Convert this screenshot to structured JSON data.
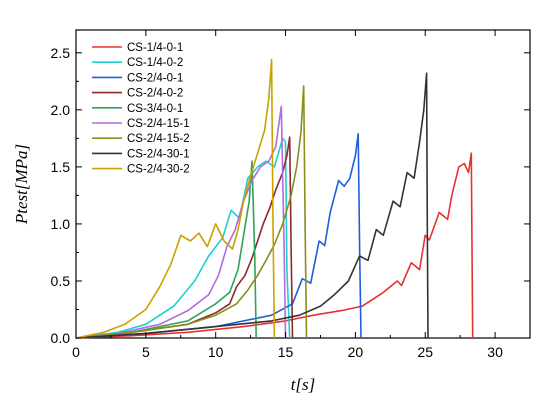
{
  "chart_data": {
    "type": "line",
    "title": "",
    "xlabel": "t[s]",
    "ylabel": "Ptest[MPa]",
    "xlim": [
      0,
      32.5
    ],
    "ylim": [
      0,
      2.7
    ],
    "xticks": [
      0,
      5,
      10,
      15,
      20,
      25,
      30
    ],
    "yticks": [
      0.0,
      0.5,
      1.0,
      1.5,
      2.0,
      2.5
    ],
    "xtick_labels": [
      "0",
      "5",
      "10",
      "15",
      "20",
      "25",
      "30"
    ],
    "ytick_labels": [
      "0.0",
      "0.5",
      "1.0",
      "1.5",
      "2.0",
      "2.5"
    ],
    "grid": false,
    "legend_position": "top-left",
    "series": [
      {
        "name": "CS-1/4-0-1",
        "color": "#e8312f",
        "x": [
          0,
          4,
          8,
          12,
          15,
          17,
          19,
          20.5,
          22,
          23,
          23.3,
          24,
          24.6,
          25,
          25.3,
          26,
          26.6,
          26.9,
          27.4,
          27.8,
          28.1,
          28.3,
          28.35,
          28.4
        ],
        "y": [
          0,
          0.02,
          0.05,
          0.1,
          0.15,
          0.2,
          0.24,
          0.28,
          0.4,
          0.5,
          0.46,
          0.66,
          0.6,
          0.9,
          0.86,
          1.1,
          1.04,
          1.25,
          1.5,
          1.53,
          1.45,
          1.62,
          0.8,
          0
        ]
      },
      {
        "name": "CS-1/4-0-2",
        "color": "#1fcfcf",
        "x": [
          0,
          3,
          5,
          7,
          8.5,
          9.5,
          10.5,
          11.1,
          11.7,
          12.3,
          13,
          13.6,
          14.2,
          14.8,
          15.0,
          15.1,
          15.3
        ],
        "y": [
          0,
          0.05,
          0.12,
          0.28,
          0.5,
          0.72,
          0.88,
          1.12,
          1.05,
          1.4,
          1.5,
          1.55,
          1.5,
          1.75,
          1.72,
          0.6,
          0
        ]
      },
      {
        "name": "CS-2/4-0-1",
        "color": "#1f5fd6",
        "x": [
          0,
          5,
          10,
          14,
          15.5,
          16.2,
          16.8,
          17.4,
          17.8,
          18.2,
          18.8,
          19.2,
          19.6,
          20.0,
          20.2,
          20.3,
          20.4
        ],
        "y": [
          0,
          0.04,
          0.1,
          0.2,
          0.3,
          0.52,
          0.48,
          0.85,
          0.81,
          1.1,
          1.38,
          1.33,
          1.4,
          1.6,
          1.79,
          0.8,
          0
        ]
      },
      {
        "name": "CS-2/4-0-2",
        "color": "#8b2b2b",
        "x": [
          0,
          4,
          8,
          10,
          11,
          11.5,
          12.1,
          12.6,
          13,
          13.4,
          13.9,
          14.3,
          14.8,
          15.1,
          15.3,
          15.4,
          15.5
        ],
        "y": [
          0,
          0.05,
          0.12,
          0.22,
          0.3,
          0.45,
          0.55,
          0.7,
          0.85,
          1.0,
          1.15,
          1.3,
          1.45,
          1.6,
          1.76,
          0.8,
          0
        ]
      },
      {
        "name": "CS-3/4-0-1",
        "color": "#2ea35a",
        "x": [
          0,
          4,
          8,
          10,
          11,
          11.6,
          12.0,
          12.4,
          12.6,
          12.8,
          12.9
        ],
        "y": [
          0,
          0.05,
          0.15,
          0.3,
          0.4,
          0.6,
          0.9,
          1.2,
          1.55,
          0.7,
          0
        ]
      },
      {
        "name": "CS-2/4-15-1",
        "color": "#b26be0",
        "x": [
          0,
          3,
          6,
          8,
          9.5,
          10.2,
          10.8,
          11.4,
          12,
          12.6,
          13.2,
          13.8,
          14.3,
          14.7,
          14.9,
          15.0
        ],
        "y": [
          0,
          0.04,
          0.12,
          0.24,
          0.38,
          0.55,
          0.8,
          0.95,
          1.2,
          1.38,
          1.5,
          1.55,
          1.68,
          2.03,
          0.8,
          0
        ]
      },
      {
        "name": "CS-2/4-15-2",
        "color": "#8c8c1c",
        "x": [
          0,
          4,
          8,
          10,
          11.5,
          12.3,
          13,
          13.6,
          14.2,
          14.8,
          15.4,
          15.8,
          16.1,
          16.3,
          16.4,
          16.5
        ],
        "y": [
          0,
          0.05,
          0.12,
          0.2,
          0.3,
          0.42,
          0.55,
          0.68,
          0.82,
          1.0,
          1.25,
          1.5,
          1.8,
          2.21,
          1.0,
          0
        ]
      },
      {
        "name": "CS-2/4-30-1",
        "color": "#333333",
        "x": [
          0,
          5,
          10,
          14,
          16,
          17.5,
          18.5,
          19.5,
          20.3,
          20.9,
          21.5,
          22.0,
          22.7,
          23.2,
          23.7,
          24.2,
          24.6,
          24.9,
          25.1,
          25.15,
          25.2
        ],
        "y": [
          0,
          0.04,
          0.1,
          0.15,
          0.2,
          0.28,
          0.38,
          0.5,
          0.72,
          0.68,
          0.95,
          0.9,
          1.2,
          1.15,
          1.45,
          1.4,
          1.72,
          2.0,
          2.32,
          1.0,
          0
        ]
      },
      {
        "name": "CS-2/4-30-2",
        "color": "#c9a200",
        "x": [
          0,
          2,
          3.5,
          5,
          6,
          6.8,
          7.5,
          8.2,
          8.8,
          9.4,
          10,
          10.6,
          11.2,
          11.6,
          12,
          12.5,
          13,
          13.5,
          13.8,
          14.0,
          14.1,
          14.2
        ],
        "y": [
          0,
          0.05,
          0.12,
          0.25,
          0.45,
          0.65,
          0.9,
          0.85,
          0.92,
          0.8,
          1.0,
          0.85,
          0.78,
          0.95,
          1.2,
          1.42,
          1.62,
          1.82,
          2.1,
          2.44,
          1.0,
          0
        ]
      }
    ]
  }
}
